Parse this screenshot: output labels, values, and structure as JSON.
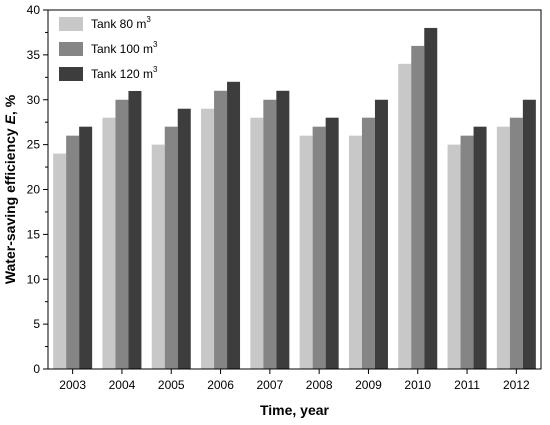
{
  "chart_data": {
    "type": "bar",
    "title": "",
    "xlabel": "Time, year",
    "ylabel_prefix": "Water-saving efficiency ",
    "ylabel_symbol": "E",
    "ylabel_suffix": ", %",
    "ylim": [
      0,
      40
    ],
    "yticks": [
      0,
      5,
      10,
      15,
      20,
      25,
      30,
      35,
      40
    ],
    "legend_position": "top-left",
    "grid": false,
    "categories": [
      "2003",
      "2004",
      "2005",
      "2006",
      "2007",
      "2008",
      "2009",
      "2010",
      "2011",
      "2012"
    ],
    "series": [
      {
        "name": "Tank 80 m",
        "unit_sup": "3",
        "color": "#c8c8c8",
        "values": [
          24,
          28,
          25,
          29,
          28,
          26,
          26,
          34,
          25,
          27
        ]
      },
      {
        "name": "Tank 100 m",
        "unit_sup": "3",
        "color": "#858585",
        "values": [
          26,
          30,
          27,
          31,
          30,
          27,
          28,
          36,
          26,
          28
        ]
      },
      {
        "name": "Tank 120 m",
        "unit_sup": "3",
        "color": "#3d3d3d",
        "values": [
          27,
          31,
          29,
          32,
          31,
          28,
          30,
          38,
          27,
          30
        ]
      }
    ]
  }
}
